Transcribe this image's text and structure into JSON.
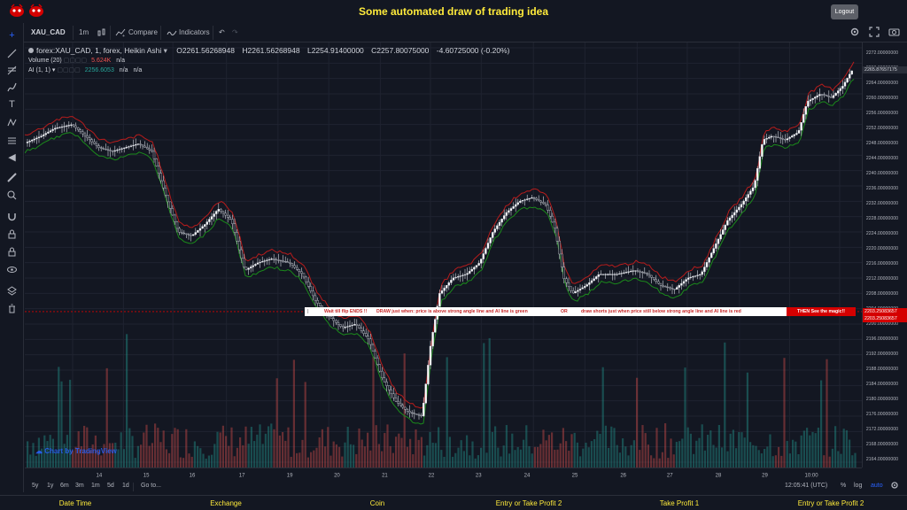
{
  "header": {
    "title": "Some automated draw of trading idea",
    "logout_label": "Logout"
  },
  "toolbar": {
    "symbol": "XAU_CAD",
    "interval": "1m",
    "compare_label": "Compare",
    "indicators_label": "Indicators"
  },
  "legend": {
    "main": "forex:XAU_CAD, 1, forex, Heikin Ashi",
    "open": "O2261.56268948",
    "high": "H2261.56268948",
    "low": "L2254.91400000",
    "close": "C2257.80075000",
    "change": "-4.60725000 (-0.20%)",
    "volume_label": "Volume (20)",
    "volume_value": "5.624K",
    "volume_na": "n/a",
    "ai_label": "AI (1, 1)",
    "ai_value": "2256.6053",
    "ai_na1": "n/a",
    "ai_na2": "n/a"
  },
  "price_axis": {
    "ticks": [
      "2272.00000000",
      "2268.00000000",
      "2264.00000000",
      "2260.00000000",
      "2256.00000000",
      "2252.00000000",
      "2248.00000000",
      "2244.00000000",
      "2240.00000000",
      "2236.00000000",
      "2232.00000000",
      "2228.00000000",
      "2224.00000000",
      "2220.00000000",
      "2216.00000000",
      "2212.00000000",
      "2208.00000000",
      "2204.00000000",
      "2200.00000000",
      "2196.00000000",
      "2192.00000000",
      "2188.00000000",
      "2184.00000000",
      "2180.00000000",
      "2176.00000000",
      "2172.00000000",
      "2168.00000000",
      "2164.00000000"
    ],
    "current_price": "2265.87657175",
    "line_price_a": "2203.25083657",
    "line_price_b": "2203.25083657"
  },
  "time_axis": {
    "labels": [
      "14",
      "15",
      "16",
      "17",
      "19",
      "20",
      "21",
      "22",
      "23",
      "24",
      "25",
      "26",
      "27",
      "28",
      "29",
      "10:00"
    ]
  },
  "banner": {
    "seg1": "Wait till flip ENDS !!",
    "seg2": "DRAW just when:  price is above strong angle line and AI line is green",
    "seg3": "OR",
    "seg4": "draw shorts just when price still below strong angle line and AI line is red",
    "right": "THEN See the magic!!"
  },
  "watermark": "Chart by TradingView",
  "range_bar": {
    "ranges": [
      "5y",
      "1y",
      "6m",
      "3m",
      "1m",
      "5d",
      "1d"
    ],
    "goto": "Go to...",
    "time": "12:05:41 (UTC)",
    "percent": "%",
    "log": "log",
    "auto": "auto"
  },
  "footer": {
    "columns": [
      "Date Time",
      "Exchange",
      "Coin",
      "Entry or Take Profit 2",
      "Take Profit 1",
      "Entry or Take Profit 2"
    ]
  },
  "colors": {
    "background": "#131722",
    "title": "#ffeb3b",
    "up": "#26a69a",
    "down": "#ef5350",
    "ai_green": "#1b8a1b",
    "ai_red": "#b71c1c",
    "accent": "#2962ff"
  }
}
